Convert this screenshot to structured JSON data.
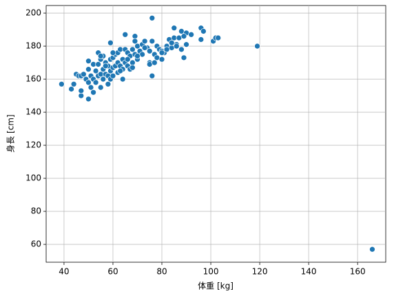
{
  "chart_data": {
    "type": "scatter",
    "x_label": "体重 [kg]",
    "y_label": "身長 [cm]",
    "color": "#1f77b4",
    "grid": true,
    "xlim": [
      32.7,
      171.5
    ],
    "ylim": [
      49.2,
      204.6
    ],
    "xticks": [
      40,
      60,
      80,
      100,
      120,
      140,
      160
    ],
    "yticks": [
      60,
      80,
      100,
      120,
      140,
      160,
      180,
      200
    ],
    "x": [
      39,
      43,
      44,
      45,
      47,
      47,
      50,
      52,
      59,
      65,
      69,
      76,
      76,
      85,
      96,
      97,
      89,
      101,
      102,
      103,
      119,
      166,
      88,
      90,
      92,
      46,
      47,
      48,
      49,
      50,
      50,
      50,
      51,
      51,
      52,
      52,
      53,
      53,
      54,
      54,
      54,
      55,
      55,
      55,
      56,
      56,
      56,
      57,
      57,
      58,
      58,
      58,
      59,
      59,
      59,
      60,
      60,
      60,
      61,
      61,
      62,
      62,
      62,
      63,
      63,
      64,
      64,
      64,
      65,
      65,
      66,
      66,
      67,
      67,
      68,
      68,
      69,
      69,
      70,
      70,
      71,
      72,
      72,
      73,
      74,
      75,
      75,
      76,
      77,
      78,
      78,
      79,
      80,
      80,
      81,
      82,
      83,
      84,
      85,
      86,
      87,
      88,
      89,
      90,
      96,
      55,
      57,
      60,
      63,
      66,
      68,
      70,
      73,
      75,
      77,
      80,
      82,
      84,
      86
    ],
    "y": [
      157,
      154,
      157,
      163,
      150,
      153,
      148,
      152,
      182,
      187,
      186,
      197,
      162,
      191,
      191,
      189,
      173,
      183,
      185,
      185,
      180,
      57,
      189,
      188,
      187,
      162,
      162,
      163,
      160,
      171,
      166,
      158,
      162,
      155,
      169,
      160,
      165,
      158,
      176,
      169,
      162,
      172,
      163,
      155,
      174,
      166,
      160,
      170,
      163,
      168,
      162,
      157,
      172,
      165,
      160,
      173,
      167,
      162,
      175,
      168,
      176,
      170,
      164,
      178,
      168,
      172,
      166,
      160,
      178,
      170,
      176,
      168,
      174,
      166,
      178,
      170,
      183,
      175,
      180,
      172,
      177,
      181,
      175,
      183,
      179,
      177,
      170,
      183,
      175,
      180,
      173,
      178,
      177,
      172,
      176,
      180,
      184,
      179,
      185,
      181,
      185,
      178,
      186,
      181,
      184,
      174,
      168,
      176,
      165,
      172,
      167,
      174,
      179,
      169,
      170,
      176,
      178,
      182,
      180
    ]
  }
}
